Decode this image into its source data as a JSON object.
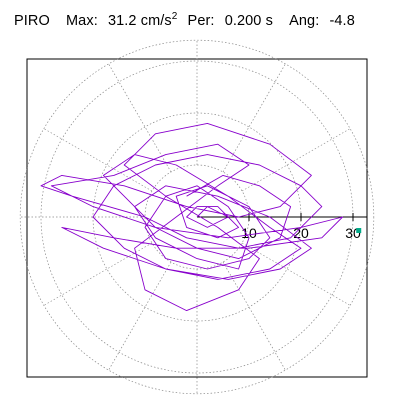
{
  "header": {
    "station": "PIRO",
    "max_label": "Max:",
    "max_value": "31.2 cm/s",
    "max_exp": "2",
    "per_label": "Per:",
    "per_value": "0.200 s",
    "ang_label": "Ang:",
    "ang_value": "-4.8"
  },
  "colors": {
    "trace": "#8800cc",
    "grid": "#888888",
    "frame": "#000000",
    "marker": "#00aa88"
  },
  "chart_data": {
    "type": "polar-particle-motion",
    "title": "",
    "radial_ticks": [
      10,
      20,
      30
    ],
    "radial_tick_labels": [
      "10",
      "20",
      "30"
    ],
    "r_max": 34,
    "angular_grid_deg": 30,
    "max_amplitude": 31.2,
    "max_angle_deg": -4.8,
    "trace": [
      [
        -2,
        4
      ],
      [
        5,
        8
      ],
      [
        12,
        6
      ],
      [
        18,
        2
      ],
      [
        16,
        -4
      ],
      [
        8,
        -8
      ],
      [
        0,
        -6
      ],
      [
        -8,
        -2
      ],
      [
        -14,
        4
      ],
      [
        -18,
        8
      ],
      [
        -12,
        12
      ],
      [
        -4,
        10
      ],
      [
        6,
        4
      ],
      [
        14,
        -2
      ],
      [
        20,
        -6
      ],
      [
        14,
        -10
      ],
      [
        4,
        -12
      ],
      [
        -6,
        -10
      ],
      [
        -14,
        -6
      ],
      [
        -20,
        0
      ],
      [
        -16,
        6
      ],
      [
        -8,
        10
      ],
      [
        2,
        12
      ],
      [
        12,
        10
      ],
      [
        20,
        6
      ],
      [
        24,
        2
      ],
      [
        18,
        -4
      ],
      [
        8,
        -6
      ],
      [
        -2,
        -4
      ],
      [
        -10,
        0
      ],
      [
        -24,
        4
      ],
      [
        -30,
        6
      ],
      [
        -26,
        8
      ],
      [
        -14,
        6
      ],
      [
        -2,
        2
      ],
      [
        8,
        0
      ],
      [
        16,
        2
      ],
      [
        22,
        8
      ],
      [
        14,
        14
      ],
      [
        2,
        18
      ],
      [
        -8,
        16
      ],
      [
        -14,
        10
      ],
      [
        -6,
        4
      ],
      [
        4,
        -2
      ],
      [
        12,
        -8
      ],
      [
        8,
        -14
      ],
      [
        -2,
        -18
      ],
      [
        -10,
        -14
      ],
      [
        -12,
        -6
      ],
      [
        -4,
        0
      ],
      [
        4,
        6
      ],
      [
        10,
        10
      ],
      [
        4,
        14
      ],
      [
        -6,
        12
      ],
      [
        -16,
        8
      ],
      [
        -28,
        6
      ],
      [
        -20,
        2
      ],
      [
        -8,
        -2
      ],
      [
        6,
        -4
      ],
      [
        20,
        -2
      ],
      [
        28,
        0
      ],
      [
        24,
        -4
      ],
      [
        10,
        -6
      ],
      [
        -4,
        -6
      ],
      [
        -16,
        -4
      ],
      [
        -26,
        -2
      ],
      [
        -18,
        -6
      ],
      [
        -6,
        -10
      ],
      [
        6,
        -12
      ],
      [
        16,
        -10
      ],
      [
        22,
        -6
      ],
      [
        14,
        0
      ],
      [
        4,
        4
      ],
      [
        -6,
        6
      ],
      [
        -12,
        2
      ],
      [
        -8,
        -4
      ],
      [
        0,
        -8
      ],
      [
        8,
        -10
      ],
      [
        10,
        -4
      ],
      [
        6,
        2
      ],
      [
        0,
        6
      ],
      [
        -6,
        4
      ],
      [
        -10,
        -2
      ],
      [
        -6,
        -8
      ],
      [
        2,
        -10
      ],
      [
        10,
        -8
      ],
      [
        14,
        -4
      ],
      [
        10,
        2
      ],
      [
        2,
        6
      ],
      [
        -4,
        4
      ],
      [
        -2,
        -2
      ],
      [
        4,
        -4
      ],
      [
        8,
        -2
      ],
      [
        4,
        2
      ],
      [
        0,
        2
      ],
      [
        -2,
        0
      ],
      [
        2,
        -2
      ],
      [
        6,
        0
      ],
      [
        2,
        2
      ],
      [
        0,
        0
      ]
    ],
    "max_point": [
      31.1,
      -2.6
    ]
  }
}
